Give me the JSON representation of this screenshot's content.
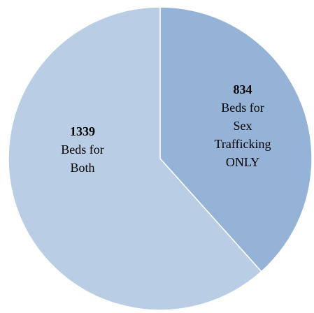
{
  "chart_data": {
    "type": "pie",
    "categories": [
      "Beds for Sex Trafficking ONLY",
      "Beds for Both"
    ],
    "values": [
      834,
      1339
    ],
    "colors": [
      "#95b3d7",
      "#b9cde5"
    ]
  }
}
